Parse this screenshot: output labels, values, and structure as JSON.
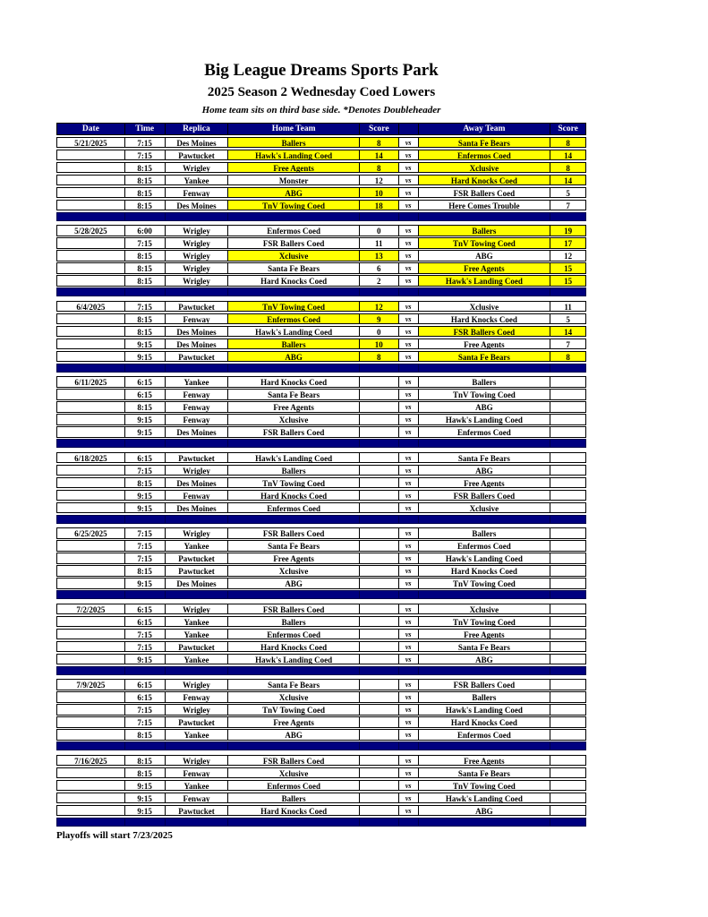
{
  "header": {
    "title": "Big League Dreams Sports Park",
    "subtitle": "2025 Season 2 Wednesday Coed Lowers",
    "tagline": "Home team sits on third base side.  *Denotes Doubleheader"
  },
  "colors": {
    "navy": "#000080",
    "yellow": "#FFFF00",
    "header_text": "#FFFFFF",
    "border": "#000000"
  },
  "footer": {
    "note": "Playoffs will start 7/23/2025"
  },
  "table": {
    "columns": [
      "Date",
      "Time",
      "Replica",
      "Home Team",
      "Score",
      "",
      "Away Team",
      "Score"
    ],
    "vs_label": "vs",
    "blocks": [
      {
        "date": "5/21/2025",
        "games": [
          {
            "time": "7:15",
            "replica": "Des Moines",
            "home": "Ballers",
            "hs": "8",
            "hh": true,
            "away": "Santa Fe Bears",
            "as": "8",
            "ah": true
          },
          {
            "time": "7:15",
            "replica": "Pawtucket",
            "home": "Hawk's Landing Coed",
            "hs": "14",
            "hh": true,
            "away": "Enfermos Coed",
            "as": "14",
            "ah": true
          },
          {
            "time": "8:15",
            "replica": "Wrigley",
            "home": "Free Agents",
            "hs": "8",
            "hh": true,
            "away": "Xclusive",
            "as": "8",
            "ah": true
          },
          {
            "time": "8:15",
            "replica": "Yankee",
            "home": "Monster",
            "hs": "12",
            "hh": false,
            "away": "Hard Knocks Coed",
            "as": "14",
            "ah": true
          },
          {
            "time": "8:15",
            "replica": "Fenway",
            "home": "ABG",
            "hs": "10",
            "hh": true,
            "away": "FSR Ballers Coed",
            "as": "5",
            "ah": false
          },
          {
            "time": "8:15",
            "replica": "Des Moines",
            "home": "TnV Towing Coed",
            "hs": "18",
            "hh": true,
            "away": "Here Comes Trouble",
            "as": "7",
            "ah": false
          }
        ]
      },
      {
        "date": "5/28/2025",
        "games": [
          {
            "time": "6:00",
            "replica": "Wrigley",
            "home": "Enfermos Coed",
            "hs": "0",
            "hh": false,
            "away": "Ballers",
            "as": "19",
            "ah": true
          },
          {
            "time": "7:15",
            "replica": "Wrigley",
            "home": "FSR Ballers Coed",
            "hs": "11",
            "hh": false,
            "away": "TnV Towing Coed",
            "as": "17",
            "ah": true
          },
          {
            "time": "8:15",
            "replica": "Wrigley",
            "home": "Xclusive",
            "hs": "13",
            "hh": true,
            "away": "ABG",
            "as": "12",
            "ah": false
          },
          {
            "time": "8:15",
            "replica": "Wrigley",
            "home": "Santa Fe Bears",
            "hs": "6",
            "hh": false,
            "away": "Free Agents",
            "as": "15",
            "ah": true
          },
          {
            "time": "8:15",
            "replica": "Wrigley",
            "home": "Hard Knocks Coed",
            "hs": "2",
            "hh": false,
            "away": "Hawk's Landing Coed",
            "as": "15",
            "ah": true
          }
        ]
      },
      {
        "date": "6/4/2025",
        "games": [
          {
            "time": "7:15",
            "replica": "Pawtucket",
            "home": "TnV Towing Coed",
            "hs": "12",
            "hh": true,
            "away": "Xclusive",
            "as": "11",
            "ah": false
          },
          {
            "time": "8:15",
            "replica": "Fenway",
            "home": "Enfermos Coed",
            "hs": "9",
            "hh": true,
            "away": "Hard Knocks Coed",
            "as": "5",
            "ah": false
          },
          {
            "time": "8:15",
            "replica": "Des Moines",
            "home": "Hawk's Landing Coed",
            "hs": "0",
            "hh": false,
            "away": "FSR Ballers Coed",
            "as": "14",
            "ah": true
          },
          {
            "time": "9:15",
            "replica": "Des Moines",
            "home": "Ballers",
            "hs": "10",
            "hh": true,
            "away": "Free Agents",
            "as": "7",
            "ah": false
          },
          {
            "time": "9:15",
            "replica": "Pawtucket",
            "home": "ABG",
            "hs": "8",
            "hh": true,
            "away": "Santa Fe Bears",
            "as": "8",
            "ah": true
          }
        ]
      },
      {
        "date": "6/11/2025",
        "games": [
          {
            "time": "6:15",
            "replica": "Yankee",
            "home": "Hard Knocks Coed",
            "hs": "",
            "hh": false,
            "away": "Ballers",
            "as": "",
            "ah": false
          },
          {
            "time": "6:15",
            "replica": "Fenway",
            "home": "Santa Fe Bears",
            "hs": "",
            "hh": false,
            "away": "TnV Towing Coed",
            "as": "",
            "ah": false
          },
          {
            "time": "8:15",
            "replica": "Fenway",
            "home": "Free Agents",
            "hs": "",
            "hh": false,
            "away": "ABG",
            "as": "",
            "ah": false
          },
          {
            "time": "9:15",
            "replica": "Fenway",
            "home": "Xclusive",
            "hs": "",
            "hh": false,
            "away": "Hawk's Landing Coed",
            "as": "",
            "ah": false
          },
          {
            "time": "9:15",
            "replica": "Des Moines",
            "home": "FSR Ballers Coed",
            "hs": "",
            "hh": false,
            "away": "Enfermos Coed",
            "as": "",
            "ah": false
          }
        ]
      },
      {
        "date": "6/18/2025",
        "games": [
          {
            "time": "6:15",
            "replica": "Pawtucket",
            "home": "Hawk's Landing Coed",
            "hs": "",
            "hh": false,
            "away": "Santa Fe Bears",
            "as": "",
            "ah": false
          },
          {
            "time": "7:15",
            "replica": "Wrigley",
            "home": "Ballers",
            "hs": "",
            "hh": false,
            "away": "ABG",
            "as": "",
            "ah": false
          },
          {
            "time": "8:15",
            "replica": "Des Moines",
            "home": "TnV Towing Coed",
            "hs": "",
            "hh": false,
            "away": "Free Agents",
            "as": "",
            "ah": false
          },
          {
            "time": "9:15",
            "replica": "Fenway",
            "home": "Hard Knocks Coed",
            "hs": "",
            "hh": false,
            "away": "FSR Ballers Coed",
            "as": "",
            "ah": false
          },
          {
            "time": "9:15",
            "replica": "Des Moines",
            "home": "Enfermos Coed",
            "hs": "",
            "hh": false,
            "away": "Xclusive",
            "as": "",
            "ah": false
          }
        ]
      },
      {
        "date": "6/25/2025",
        "games": [
          {
            "time": "7:15",
            "replica": "Wrigley",
            "home": "FSR Ballers Coed",
            "hs": "",
            "hh": false,
            "away": "Ballers",
            "as": "",
            "ah": false
          },
          {
            "time": "7:15",
            "replica": "Yankee",
            "home": "Santa Fe Bears",
            "hs": "",
            "hh": false,
            "away": "Enfermos Coed",
            "as": "",
            "ah": false
          },
          {
            "time": "7:15",
            "replica": "Pawtucket",
            "home": "Free Agents",
            "hs": "",
            "hh": false,
            "away": "Hawk's Landing Coed",
            "as": "",
            "ah": false
          },
          {
            "time": "8:15",
            "replica": "Pawtucket",
            "home": "Xclusive",
            "hs": "",
            "hh": false,
            "away": "Hard Knocks Coed",
            "as": "",
            "ah": false
          },
          {
            "time": "9:15",
            "replica": "Des Moines",
            "home": "ABG",
            "hs": "",
            "hh": false,
            "away": "TnV Towing Coed",
            "as": "",
            "ah": false
          }
        ]
      },
      {
        "date": "7/2/2025",
        "games": [
          {
            "time": "6:15",
            "replica": "Wrigley",
            "home": "FSR Ballers Coed",
            "hs": "",
            "hh": false,
            "away": "Xclusive",
            "as": "",
            "ah": false
          },
          {
            "time": "6:15",
            "replica": "Yankee",
            "home": "Ballers",
            "hs": "",
            "hh": false,
            "away": "TnV Towing Coed",
            "as": "",
            "ah": false
          },
          {
            "time": "7:15",
            "replica": "Yankee",
            "home": "Enfermos Coed",
            "hs": "",
            "hh": false,
            "away": "Free Agents",
            "as": "",
            "ah": false
          },
          {
            "time": "7:15",
            "replica": "Pawtucket",
            "home": "Hard Knocks Coed",
            "hs": "",
            "hh": false,
            "away": "Santa Fe Bears",
            "as": "",
            "ah": false
          },
          {
            "time": "9:15",
            "replica": "Yankee",
            "home": "Hawk's Landing Coed",
            "hs": "",
            "hh": false,
            "away": "ABG",
            "as": "",
            "ah": false
          }
        ]
      },
      {
        "date": "7/9/2025",
        "games": [
          {
            "time": "6:15",
            "replica": "Wrigley",
            "home": "Santa Fe Bears",
            "hs": "",
            "hh": false,
            "away": "FSR Ballers Coed",
            "as": "",
            "ah": false
          },
          {
            "time": "6:15",
            "replica": "Fenway",
            "home": "Xclusive",
            "hs": "",
            "hh": false,
            "away": "Ballers",
            "as": "",
            "ah": false
          },
          {
            "time": "7:15",
            "replica": "Wrigley",
            "home": "TnV Towing Coed",
            "hs": "",
            "hh": false,
            "away": "Hawk's Landing Coed",
            "as": "",
            "ah": false
          },
          {
            "time": "7:15",
            "replica": "Pawtucket",
            "home": "Free Agents",
            "hs": "",
            "hh": false,
            "away": "Hard Knocks Coed",
            "as": "",
            "ah": false
          },
          {
            "time": "8:15",
            "replica": "Yankee",
            "home": "ABG",
            "hs": "",
            "hh": false,
            "away": "Enfermos Coed",
            "as": "",
            "ah": false
          }
        ]
      },
      {
        "date": "7/16/2025",
        "games": [
          {
            "time": "8:15",
            "replica": "Wrigley",
            "home": "FSR Ballers Coed",
            "hs": "",
            "hh": false,
            "away": "Free Agents",
            "as": "",
            "ah": false
          },
          {
            "time": "8:15",
            "replica": "Fenway",
            "home": "Xclusive",
            "hs": "",
            "hh": false,
            "away": "Santa Fe Bears",
            "as": "",
            "ah": false
          },
          {
            "time": "9:15",
            "replica": "Yankee",
            "home": "Enfermos Coed",
            "hs": "",
            "hh": false,
            "away": "TnV Towing Coed",
            "as": "",
            "ah": false
          },
          {
            "time": "9:15",
            "replica": "Fenway",
            "home": "Ballers",
            "hs": "",
            "hh": false,
            "away": "Hawk's Landing Coed",
            "as": "",
            "ah": false
          },
          {
            "time": "9:15",
            "replica": "Pawtucket",
            "home": "Hard Knocks Coed",
            "hs": "",
            "hh": false,
            "away": "ABG",
            "as": "",
            "ah": false
          }
        ]
      }
    ]
  }
}
